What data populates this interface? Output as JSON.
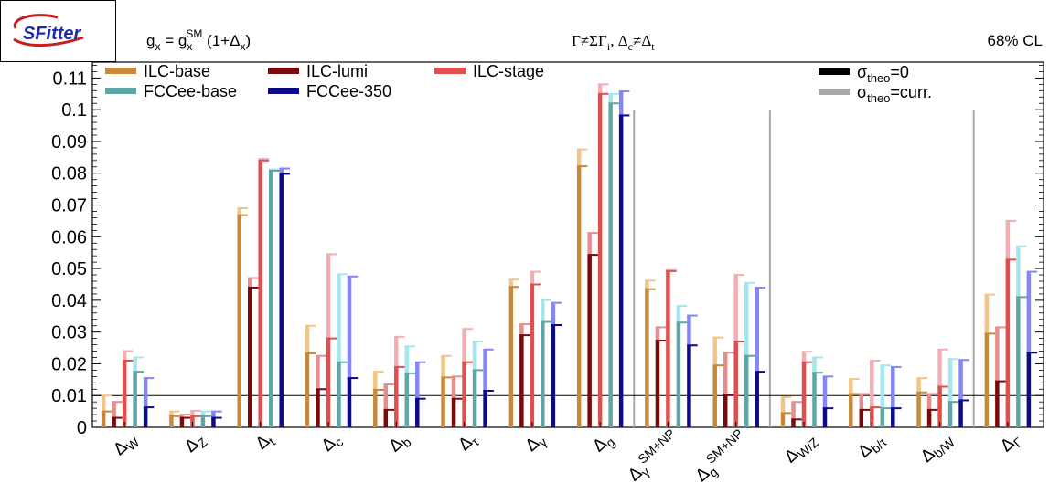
{
  "header": {
    "logo_text": "SFitter",
    "formula": "g_x = g_x^SM (1+Δ_x)",
    "condition": "Γ≠ΣΓ_i, Δ_c≠Δ_t",
    "cl": "68% CL"
  },
  "chart_data": {
    "type": "bar",
    "title": "",
    "xlabel": "",
    "ylabel": "",
    "ylim": [
      0,
      0.115
    ],
    "yticks": [
      0,
      0.01,
      0.02,
      0.03,
      0.04,
      0.05,
      0.06,
      0.07,
      0.08,
      0.09,
      0.1,
      0.11
    ],
    "ytick_labels": [
      "0",
      "0.01",
      "0.02",
      "0.03",
      "0.04",
      "0.05",
      "0.06",
      "0.07",
      "0.08",
      "0.09",
      "0.1",
      "0.11"
    ],
    "reference_line": 0.01,
    "legend_placement": "top",
    "categories": [
      "ΔW",
      "ΔZ",
      "Δt",
      "Δc",
      "Δb",
      "Δτ",
      "Δγ",
      "Δg",
      "ΔγSM+NP",
      "ΔgSM+NP",
      "ΔW/Z",
      "Δb/τ",
      "Δb/W",
      "ΔΓ"
    ],
    "category_labels": [
      {
        "main": "Δ",
        "sub": "W",
        "sup": ""
      },
      {
        "main": "Δ",
        "sub": "Z",
        "sup": ""
      },
      {
        "main": "Δ",
        "sub": "t",
        "sup": ""
      },
      {
        "main": "Δ",
        "sub": "c",
        "sup": ""
      },
      {
        "main": "Δ",
        "sub": "b",
        "sup": ""
      },
      {
        "main": "Δ",
        "sub": "τ",
        "sup": ""
      },
      {
        "main": "Δ",
        "sub": "γ",
        "sup": ""
      },
      {
        "main": "Δ",
        "sub": "g",
        "sup": ""
      },
      {
        "main": "Δ",
        "sub": "γ",
        "sup": "SM+NP"
      },
      {
        "main": "Δ",
        "sub": "g",
        "sup": "SM+NP"
      },
      {
        "main": "Δ",
        "sub": "W/Z",
        "sup": ""
      },
      {
        "main": "Δ",
        "sub": "b/τ",
        "sup": ""
      },
      {
        "main": "Δ",
        "sub": "b/W",
        "sup": ""
      },
      {
        "main": "Δ",
        "sub": "Γ",
        "sup": ""
      }
    ],
    "separators_after": [
      7,
      9,
      12
    ],
    "series": [
      {
        "name": "ILC-base",
        "color": "#c8893a",
        "light": "#f0c586",
        "theo0": [
          0.005,
          0.0035,
          0.0668,
          0.0233,
          0.0118,
          0.0157,
          0.0442,
          0.0822,
          0.0435,
          0.0195,
          0.0045,
          0.0105,
          0.011,
          0.0295
        ],
        "curr": [
          0.01,
          0.005,
          0.069,
          0.032,
          0.0175,
          0.0225,
          0.0465,
          0.0875,
          0.0462,
          0.0283,
          0.0095,
          0.0152,
          0.0155,
          0.0418
        ]
      },
      {
        "name": "ILC-lumi",
        "color": "#7a0a0a",
        "light": "#e48f8f",
        "theo0": [
          0.003,
          0.003,
          0.044,
          0.012,
          0.0055,
          0.009,
          0.029,
          0.0543,
          0.0273,
          0.0103,
          0.0025,
          0.0055,
          0.0055,
          0.0145
        ],
        "curr": [
          0.008,
          0.004,
          0.047,
          0.0225,
          0.0135,
          0.016,
          0.0325,
          0.0612,
          0.0315,
          0.0235,
          0.008,
          0.0105,
          0.0105,
          0.0315
        ]
      },
      {
        "name": "ILC-stage",
        "color": "#e04e4e",
        "light": "#f3aeb4",
        "theo0": [
          0.021,
          0.0035,
          0.084,
          0.028,
          0.019,
          0.0205,
          0.045,
          0.105,
          0.0492,
          0.027,
          0.0205,
          0.0063,
          0.0128,
          0.0528
        ],
        "curr": [
          0.024,
          0.0052,
          0.0845,
          0.0545,
          0.0285,
          0.031,
          0.049,
          0.108,
          0.0495,
          0.048,
          0.0238,
          0.021,
          0.0245,
          0.065
        ]
      },
      {
        "name": "FCCee-base",
        "color": "#5fa6a6",
        "light": "#a4e6ea",
        "theo0": [
          0.0175,
          0.0035,
          0.0808,
          0.0205,
          0.017,
          0.018,
          0.0332,
          0.102,
          0.033,
          0.0225,
          0.0172,
          0.006,
          0.008,
          0.041
        ],
        "curr": [
          0.022,
          0.005,
          0.0812,
          0.0482,
          0.0255,
          0.027,
          0.04,
          0.105,
          0.0382,
          0.0455,
          0.022,
          0.0195,
          0.0215,
          0.057
        ]
      },
      {
        "name": "FCCee-350",
        "color": "#0b0b88",
        "light": "#8686f4",
        "theo0": [
          0.0063,
          0.003,
          0.0798,
          0.0155,
          0.009,
          0.0115,
          0.0322,
          0.0982,
          0.0258,
          0.0175,
          0.006,
          0.006,
          0.0085,
          0.0235
        ],
        "curr": [
          0.0155,
          0.005,
          0.0815,
          0.0475,
          0.0205,
          0.0245,
          0.0392,
          0.1058,
          0.0352,
          0.044,
          0.016,
          0.019,
          0.0212,
          0.049
        ]
      }
    ],
    "theory_legend": [
      {
        "label": "σ",
        "sub": "theo",
        "rest": "=0",
        "color": "#000000"
      },
      {
        "label": "σ",
        "sub": "theo",
        "rest": "=curr.",
        "color": "#a8a8a8"
      }
    ]
  }
}
